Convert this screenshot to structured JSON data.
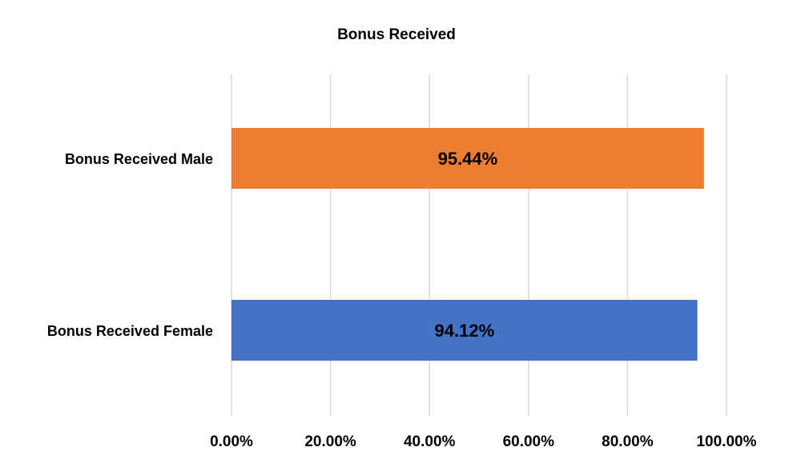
{
  "chart_data": {
    "type": "bar",
    "orientation": "horizontal",
    "title": "Bonus Received",
    "categories": [
      "Bonus Received Male",
      "Bonus Received Female"
    ],
    "values": [
      95.44,
      94.12
    ],
    "data_labels": [
      "95.44%",
      "94.12%"
    ],
    "bar_colors": [
      "#ed7d31",
      "#4472c4"
    ],
    "xlim": [
      0,
      100
    ],
    "x_ticks": [
      0,
      20,
      40,
      60,
      80,
      100
    ],
    "x_tick_labels": [
      "0.00%",
      "20.00%",
      "40.00%",
      "60.00%",
      "80.00%",
      "100.00%"
    ],
    "grid": true,
    "legend": false
  }
}
